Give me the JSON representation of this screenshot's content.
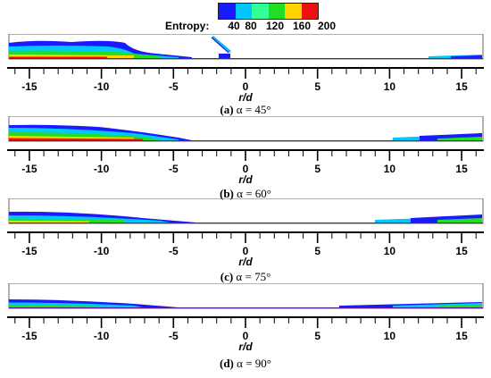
{
  "legend": {
    "title": "Entropy:",
    "tick_labels": [
      "40",
      "80",
      "120",
      "160",
      "200"
    ],
    "colors": [
      "#1a1aff",
      "#00c8ff",
      "#33ff99",
      "#22dd22",
      "#ffd400",
      "#ee1111"
    ]
  },
  "chart_data": [
    {
      "type": "heatmap",
      "caption_tag": "(a)",
      "caption_text": "α = 45°",
      "xlabel": "r/d",
      "xlim": [
        -16.5,
        16.5
      ],
      "xticks": [
        -15,
        -10,
        -5,
        0,
        5,
        10,
        15
      ],
      "xtick_labels": [
        "-15",
        "-10",
        "-5",
        "0",
        "5",
        "10",
        "15"
      ],
      "colorbar_ticks": [
        40,
        80,
        120,
        160,
        200
      ],
      "colorbar_label": "Entropy:"
    },
    {
      "type": "heatmap",
      "caption_tag": "(b)",
      "caption_text": "α = 60°",
      "xlabel": "r/d",
      "xlim": [
        -16.5,
        16.5
      ],
      "xticks": [
        -15,
        -10,
        -5,
        0,
        5,
        10,
        15
      ],
      "xtick_labels": [
        "-15",
        "-10",
        "-5",
        "0",
        "5",
        "10",
        "15"
      ]
    },
    {
      "type": "heatmap",
      "caption_tag": "(c)",
      "caption_text": "α = 75°",
      "xlabel": "r/d",
      "xlim": [
        -16.5,
        16.5
      ],
      "xticks": [
        -15,
        -10,
        -5,
        0,
        5,
        10,
        15
      ],
      "xtick_labels": [
        "-15",
        "-10",
        "-5",
        "0",
        "5",
        "10",
        "15"
      ]
    },
    {
      "type": "heatmap",
      "caption_tag": "(d)",
      "caption_text": "α = 90°",
      "xlabel": "r/d",
      "xlim": [
        -16.5,
        16.5
      ],
      "xticks": [
        -15,
        -10,
        -5,
        0,
        5,
        10,
        15
      ],
      "xtick_labels": [
        "-15",
        "-10",
        "-5",
        "0",
        "5",
        "10",
        "15"
      ]
    }
  ]
}
